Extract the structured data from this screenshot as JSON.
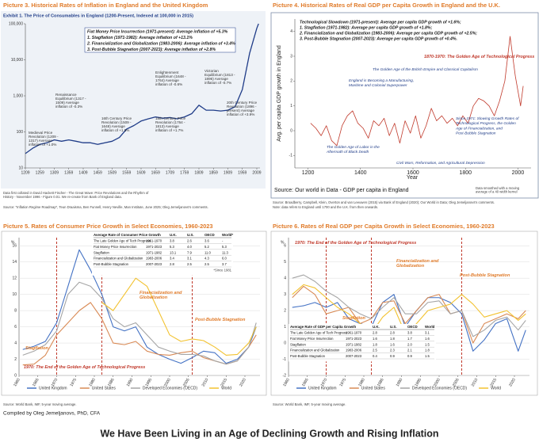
{
  "chart_data": [
    {
      "type": "line",
      "title": "Picture 3. Historical Rates of Inflation in England and the United Kingdom",
      "subtitle": "Exhibit 1. The Price of Consumables in England (1200-Present, Indexed at 100,000 in 2015)",
      "x": [
        1209,
        1234,
        1259,
        1284,
        1309,
        1334,
        1359,
        1384,
        1409,
        1434,
        1459,
        1484,
        1509,
        1534,
        1559,
        1584,
        1609,
        1634,
        1659,
        1684,
        1709,
        1734,
        1759,
        1784,
        1809,
        1834,
        1859,
        1884,
        1909,
        1934,
        1959,
        1984,
        2009,
        2015
      ],
      "values": [
        25,
        35,
        45,
        50,
        60,
        55,
        60,
        55,
        50,
        50,
        45,
        50,
        55,
        70,
        120,
        150,
        200,
        230,
        260,
        240,
        250,
        230,
        260,
        320,
        550,
        400,
        400,
        380,
        400,
        500,
        1500,
        15000,
        75000,
        100000
      ],
      "color": "#1f3c88",
      "log_scale": true,
      "grid": false,
      "xlim": [
        1209,
        2020
      ],
      "xticks": [
        1209,
        1259,
        1309,
        1359,
        1409,
        1459,
        1509,
        1559,
        1609,
        1659,
        1709,
        1759,
        1809,
        1859,
        1909,
        1959,
        2009
      ],
      "ylim": [
        10,
        100000
      ],
      "yticks": [
        10,
        100,
        {
          "value": 1000,
          "label": "1,000"
        },
        {
          "value": 10000,
          "label": "10,000"
        },
        {
          "value": 100000,
          "label": "100,000"
        }
      ],
      "box": [
        "Fiat Money Price Insurrection (1971-present): Average inflation of +5.3%",
        "1. Stagflation (1971-1982): Average inflation of +13.1%",
        "2. Financialization and Globalization (1983-2006): Average inflation of +3.4%",
        "3. Post-Bubble Stagnation (2007-2023): Average inflation of +2.8%"
      ],
      "annotations": [
        "Medieval Price Revolution (1209 - 1317) Average inflation of +1.0%",
        "Renaissance Equilibrium (1317 - 1509) Average inflation of -0.3%",
        "16th Century Price Revolution (1509 - 1648) Average inflation of +1.5%",
        "Enlightenment Equilibrium (1648 - 1764) Average inflation of -0.6%",
        "18th Century Price Revolution (1764 - 1813) Average inflation of +1.7%",
        "Victorian Equilibrium (1813 - 1896) Average inflation of -0.7%",
        "20th Century Price Revolution (1896 - present) Average inflation of +3.9%"
      ],
      "notes": [
        "Data first collated in David Hackett Fischer - The Great Wave: Price Revolutions and the Rhythm of History - November 1996 - Figure 0.01. We re-create from Bank of England data.",
        "Source: \"Inflation Regime Roadmap\", Teun Draaisma, Ben Funnell, Henry Neville, Man Institute, June 2025; Oleg Jemeljanovs's comments."
      ]
    },
    {
      "type": "line",
      "title": "Picture 4. Historical Rates of Real GDP per Capita Growth in England and the U.K.",
      "x": [
        1210,
        1230,
        1250,
        1270,
        1290,
        1310,
        1330,
        1350,
        1370,
        1390,
        1410,
        1430,
        1450,
        1470,
        1490,
        1510,
        1530,
        1550,
        1570,
        1590,
        1610,
        1630,
        1650,
        1670,
        1690,
        1710,
        1730,
        1750,
        1770,
        1790,
        1810,
        1830,
        1850,
        1870,
        1890,
        1910,
        1930,
        1950,
        1970,
        1990,
        2010,
        2020
      ],
      "values": [
        0.3,
        0.1,
        -0.2,
        0.2,
        -0.4,
        -0.6,
        0.2,
        0.6,
        0.8,
        0.3,
        0.1,
        -0.3,
        0.4,
        0.2,
        0.5,
        -0.2,
        0.3,
        -0.5,
        0.4,
        -0.1,
        0.6,
        -0.3,
        0.2,
        0.9,
        0.4,
        0.6,
        0.3,
        0.5,
        0.2,
        0.6,
        0.3,
        1.0,
        1.3,
        1.2,
        1.0,
        0.6,
        1.2,
        2.0,
        3.8,
        2.2,
        1.0,
        1.8
      ],
      "color": "#c0392b",
      "log_scale": false,
      "grid": false,
      "xlim": [
        1150,
        2050
      ],
      "xticks": [
        1200,
        1400,
        1600,
        1800,
        2000
      ],
      "ylim": [
        -1.5,
        4.5
      ],
      "yticks": [
        -1,
        0,
        1,
        2,
        3,
        4
      ],
      "x_label": "Year",
      "y_label": "Avg. per capita GDP growth in England",
      "box": [
        "Technological Slowdown (1971-present): Average per capita GDP growth of +1.6%;",
        "1. Stagflation (1971-1982): Average per capita GDP growth of +1.8%;",
        "2. Financialization and Globalization (1983-2006): Average per capita GDP growth of +2.5%;",
        "3. Post-Bubble Stagnation (2007-2023): Average per capita GDP growth of +0.4%."
      ],
      "annotations": [
        "1870-1970: The Golden Age of Technological Progress",
        "The Golden Age of the British Empire and Classical Capitalism",
        "England is Becoming a Manufacturing, Maritime and Colonial Superpower",
        "Since 1971: Slowing Growth Rates of Technological Progress, the Golden Age of Financialization, and Post-Bubble Stagnation",
        "The Golden Age of Labor in the Aftermath of Black Death",
        "Civil Wars, Reformation, and Agricultural Depression"
      ],
      "source": "Source: Our world in Data - GDP per capita in England",
      "smoothing": "Data smoothed with a moving average of a 40 width kernel",
      "notes": [
        "Source: Broadberry, Campbell, Klein, Overton and van Leeuwen (2015) via Bank of England (2020); Our World in Data; Oleg Jemeljanovs's comments.",
        "Note: data refers to England until 1700 and the U.K. from then onwards."
      ]
    },
    {
      "type": "line",
      "title": "Picture 5. Rates of Consumer Price Growth in Select Economies, 1960-2023",
      "y_unit": "%",
      "x": [
        1961,
        1964,
        1967,
        1970,
        1973,
        1976,
        1979,
        1982,
        1985,
        1988,
        1991,
        1994,
        1997,
        2000,
        2003,
        2006,
        2009,
        2012,
        2015,
        2018,
        2021,
        2023
      ],
      "series": [
        {
          "name": "United Kingdom",
          "color": "#4472c4",
          "values": [
            3.2,
            3.6,
            4.2,
            6.5,
            11,
            15.5,
            13,
            10,
            6,
            5.5,
            6,
            3.5,
            2.6,
            2,
            1.5,
            2.2,
            3,
            2.8,
            1.5,
            2,
            3.5,
            6
          ]
        },
        {
          "name": "United States",
          "color": "#d98a55",
          "values": [
            1.3,
            1.4,
            2.5,
            5,
            6.5,
            8,
            9,
            7,
            4,
            3.8,
            4.2,
            3,
            2.6,
            2.5,
            2.8,
            3,
            2.2,
            1.8,
            1.4,
            1.8,
            3.5,
            5
          ]
        },
        {
          "name": "Developed Economies (OECD)",
          "color": "#a5a5a5",
          "values": [
            2.5,
            3,
            3.8,
            5.5,
            10,
            11.5,
            11,
            9.5,
            7,
            6,
            6.5,
            5,
            3.5,
            3,
            2.6,
            2.6,
            2.4,
            1.8,
            1.4,
            1.8,
            3.5,
            6.5
          ]
        },
        {
          "name": "World",
          "color": "#f2c230",
          "values": [
            null,
            null,
            null,
            null,
            null,
            null,
            null,
            9,
            8,
            10,
            12,
            11,
            8,
            5,
            4.2,
            4.5,
            4.3,
            3.5,
            2.5,
            2.6,
            4,
            6
          ]
        }
      ],
      "log_scale": false,
      "grid": true,
      "legend": "bottom",
      "vlines": [
        1970,
        1982,
        2006
      ],
      "xlim": [
        1960,
        2024
      ],
      "xticks": [
        1960,
        1965,
        1970,
        1975,
        1980,
        1985,
        1990,
        1995,
        2000,
        2005,
        2010,
        2015,
        2020
      ],
      "ylim": [
        0,
        17
      ],
      "yticks": [
        0,
        2,
        4,
        6,
        8,
        10,
        12,
        14,
        16
      ],
      "table": {
        "header": [
          "Average Rate of Consumer Price Growth",
          "U.K.",
          "U.S.",
          "OECD",
          "World*"
        ],
        "rows": [
          [
            "The Late Golden Age of Tech Progress",
            "1961-1970",
            "3.8",
            "2.6",
            "3.6",
            "-"
          ],
          [
            "Fiat Money Price Insurrection",
            "1971-2023",
            "5.3",
            "4.0",
            "5.2",
            "5.3"
          ],
          [
            "Stagflation",
            "1971-1982",
            "13.1",
            "7.9",
            "11.0",
            "11.3"
          ],
          [
            "Financialization and Globalization",
            "1983-2006",
            "3.4",
            "3.1",
            "4.3",
            "6.0"
          ],
          [
            "Post-Bubble Stagnation",
            "2007-2023",
            "2.8",
            "2.5",
            "2.5",
            "3.7"
          ]
        ],
        "note": "*Since 1981"
      },
      "annotations": [
        "Financialization and Globalization",
        "Post-Bubble Stagnation",
        "Stagflation",
        "1970: The End of the Golden Age of Technological Progress"
      ],
      "notes": [
        "Source: World Bank, IMF, 5-year moving average."
      ]
    },
    {
      "type": "line",
      "title": "Picture 6. Rates of Real GDP per Capita Growth in Select Economies, 1960-2023",
      "y_unit": "%",
      "x": [
        1961,
        1964,
        1967,
        1970,
        1973,
        1976,
        1979,
        1982,
        1985,
        1988,
        1991,
        1994,
        1997,
        2000,
        2003,
        2006,
        2009,
        2012,
        2015,
        2018,
        2021,
        2023
      ],
      "series": [
        {
          "name": "United Kingdom",
          "color": "#4472c4",
          "values": [
            2.2,
            2.3,
            2.5,
            2.2,
            2.5,
            1.5,
            1.2,
            1,
            2.5,
            3,
            1,
            2,
            2.8,
            2.8,
            2.5,
            1.8,
            -0.5,
            0.2,
            1.2,
            1.5,
            -0.5,
            0.8
          ]
        },
        {
          "name": "United States",
          "color": "#d98a55",
          "values": [
            2.8,
            3.5,
            3,
            1.8,
            2,
            2.2,
            1.2,
            1.5,
            2.5,
            2.6,
            1.2,
            2,
            2.8,
            3,
            1.8,
            2,
            0,
            1.2,
            1.5,
            1.8,
            1.5,
            2
          ]
        },
        {
          "name": "Developed Economies (OECD)",
          "color": "#a5a5a5",
          "values": [
            4,
            4.2,
            3.8,
            3.2,
            2.8,
            2.2,
            1.8,
            1.5,
            2.2,
            2.8,
            1.8,
            1.8,
            2.5,
            2.6,
            1.8,
            2,
            0.4,
            0.8,
            1.4,
            1.6,
            0.8,
            1.4
          ]
        },
        {
          "name": "World",
          "color": "#f2c230",
          "values": [
            3,
            3.6,
            3.4,
            2.8,
            2.2,
            1.8,
            1.2,
            0.6,
            1.6,
            2.2,
            0.6,
            1.2,
            2,
            2.2,
            2.4,
            3,
            2.4,
            1.6,
            1.8,
            2,
            1.4,
            1.8
          ]
        }
      ],
      "log_scale": false,
      "grid": true,
      "legend": "bottom",
      "vlines": [
        1970,
        1982,
        2006
      ],
      "xlim": [
        1960,
        2024
      ],
      "xticks": [
        1960,
        1965,
        1970,
        1975,
        1980,
        1985,
        1990,
        1995,
        2000,
        2005,
        2010,
        2015,
        2020
      ],
      "ylim": [
        -2,
        6.5
      ],
      "yticks": [
        -2,
        -1,
        0,
        1,
        2,
        3,
        4,
        5,
        6
      ],
      "table": {
        "header": [
          "Average Rate of GDP per Capita Growth",
          "U.K.",
          "U.S.",
          "OECD",
          "World"
        ],
        "rows": [
          [
            "The Late Golden Age of Tech Progress",
            "1961-1970",
            "2.8",
            "2.8",
            "3.8",
            "3.1"
          ],
          [
            "Fiat Money Price Insurrection",
            "1971-2023",
            "1.6",
            "1.8",
            "1.7",
            "1.6"
          ],
          [
            "Stagflation",
            "1971-1982",
            "1.8",
            "1.6",
            "2.0",
            "1.5"
          ],
          [
            "Financialization and Globalization",
            "1983-2006",
            "2.5",
            "2.3",
            "2.1",
            "1.8"
          ],
          [
            "Post-Bubble Stagnation",
            "2007-2023",
            "0.4",
            "0.9",
            "0.9",
            "1.5"
          ]
        ]
      },
      "annotations": [
        "1970: The End of the Golden Age of Technological Progress",
        "Financialization and Globalization",
        "Post-Bubble Stagnation",
        "Stagflation"
      ],
      "notes": [
        "Source: World Bank, IMF, 5-year moving average."
      ]
    }
  ],
  "footer": {
    "credit": "Compiled by Oleg Jemeljanovs, PhD, CFA",
    "headline": "We Have Been Living in an Age of Declining Growth and Rising Inflation"
  }
}
